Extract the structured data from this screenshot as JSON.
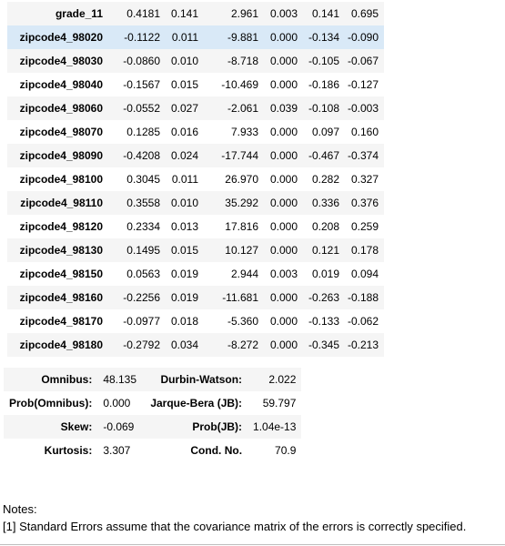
{
  "coefficients": [
    {
      "name": "grade_11",
      "coef": "0.4181",
      "std_err": "0.141",
      "t": "2.961",
      "p": "0.003",
      "ci_low": "0.141",
      "ci_high": "0.695"
    },
    {
      "name": "zipcode4_98020",
      "coef": "-0.1122",
      "std_err": "0.011",
      "t": "-9.881",
      "p": "0.000",
      "ci_low": "-0.134",
      "ci_high": "-0.090"
    },
    {
      "name": "zipcode4_98030",
      "coef": "-0.0860",
      "std_err": "0.010",
      "t": "-8.718",
      "p": "0.000",
      "ci_low": "-0.105",
      "ci_high": "-0.067"
    },
    {
      "name": "zipcode4_98040",
      "coef": "-0.1567",
      "std_err": "0.015",
      "t": "-10.469",
      "p": "0.000",
      "ci_low": "-0.186",
      "ci_high": "-0.127"
    },
    {
      "name": "zipcode4_98060",
      "coef": "-0.0552",
      "std_err": "0.027",
      "t": "-2.061",
      "p": "0.039",
      "ci_low": "-0.108",
      "ci_high": "-0.003"
    },
    {
      "name": "zipcode4_98070",
      "coef": "0.1285",
      "std_err": "0.016",
      "t": "7.933",
      "p": "0.000",
      "ci_low": "0.097",
      "ci_high": "0.160"
    },
    {
      "name": "zipcode4_98090",
      "coef": "-0.4208",
      "std_err": "0.024",
      "t": "-17.744",
      "p": "0.000",
      "ci_low": "-0.467",
      "ci_high": "-0.374"
    },
    {
      "name": "zipcode4_98100",
      "coef": "0.3045",
      "std_err": "0.011",
      "t": "26.970",
      "p": "0.000",
      "ci_low": "0.282",
      "ci_high": "0.327"
    },
    {
      "name": "zipcode4_98110",
      "coef": "0.3558",
      "std_err": "0.010",
      "t": "35.292",
      "p": "0.000",
      "ci_low": "0.336",
      "ci_high": "0.376"
    },
    {
      "name": "zipcode4_98120",
      "coef": "0.2334",
      "std_err": "0.013",
      "t": "17.816",
      "p": "0.000",
      "ci_low": "0.208",
      "ci_high": "0.259"
    },
    {
      "name": "zipcode4_98130",
      "coef": "0.1495",
      "std_err": "0.015",
      "t": "10.127",
      "p": "0.000",
      "ci_low": "0.121",
      "ci_high": "0.178"
    },
    {
      "name": "zipcode4_98150",
      "coef": "0.0563",
      "std_err": "0.019",
      "t": "2.944",
      "p": "0.003",
      "ci_low": "0.019",
      "ci_high": "0.094"
    },
    {
      "name": "zipcode4_98160",
      "coef": "-0.2256",
      "std_err": "0.019",
      "t": "-11.681",
      "p": "0.000",
      "ci_low": "-0.263",
      "ci_high": "-0.188"
    },
    {
      "name": "zipcode4_98170",
      "coef": "-0.0977",
      "std_err": "0.018",
      "t": "-5.360",
      "p": "0.000",
      "ci_low": "-0.133",
      "ci_high": "-0.062"
    },
    {
      "name": "zipcode4_98180",
      "coef": "-0.2792",
      "std_err": "0.034",
      "t": "-8.272",
      "p": "0.000",
      "ci_low": "-0.345",
      "ci_high": "-0.213"
    }
  ],
  "diagnostics": [
    {
      "label1": "Omnibus:",
      "value1": "48.135",
      "label2": "Durbin-Watson:",
      "value2": "2.022"
    },
    {
      "label1": "Prob(Omnibus):",
      "value1": "0.000",
      "label2": "Jarque-Bera (JB):",
      "value2": "59.797"
    },
    {
      "label1": "Skew:",
      "value1": "-0.069",
      "label2": "Prob(JB):",
      "value2": "1.04e-13"
    },
    {
      "label1": "Kurtosis:",
      "value1": "3.307",
      "label2": "Cond. No.",
      "value2": "70.9"
    }
  ],
  "notes": {
    "heading": "Notes:",
    "items": [
      "[1] Standard Errors assume that the covariance matrix of the errors is correctly specified."
    ]
  },
  "colors": {
    "row_stripe": "#f5f5f5",
    "row_highlight": "#d9e9f7"
  }
}
